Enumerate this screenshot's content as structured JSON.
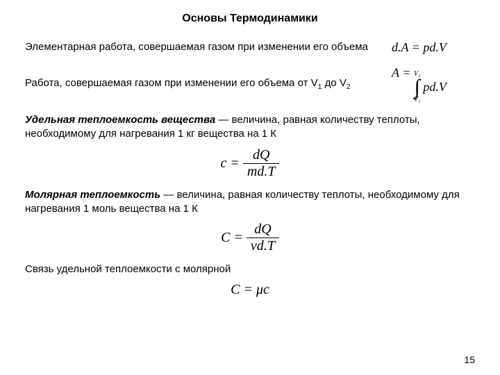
{
  "title": "Основы Термодинамики",
  "row1": {
    "text": "Элементарная работа, совершаемая газом при изменении его объема",
    "formula_html": "d.A = pd.V"
  },
  "row2": {
    "text_prefix": "Работа, совершаемая газом при изменении его объема от V",
    "sub1": "1",
    "mid": " до V",
    "sub2": "2",
    "int_upper": "V₂",
    "int_lower": "V₁",
    "lhs": "A = ",
    "integrand": "pd.V"
  },
  "def1": {
    "term": "Удельная теплоемкость вещества",
    "rest": " — величина, равная количеству теплоты, необходимому для нагревания 1 кг вещества на 1 К"
  },
  "formula1": {
    "lhs": "c = ",
    "num": "dQ",
    "den": "md.T"
  },
  "def2": {
    "term": "Молярная теплоемкость",
    "rest": " — величина, равная количеству теплоты, необходимому для нагревания 1 моль вещества на 1 К"
  },
  "formula2": {
    "lhs": "C = ",
    "num": "dQ",
    "den": "νd.T"
  },
  "def3": {
    "text": "Связь удельной теплоемкости с молярной"
  },
  "formula3": {
    "text": "C = μc"
  },
  "page_number": "15"
}
